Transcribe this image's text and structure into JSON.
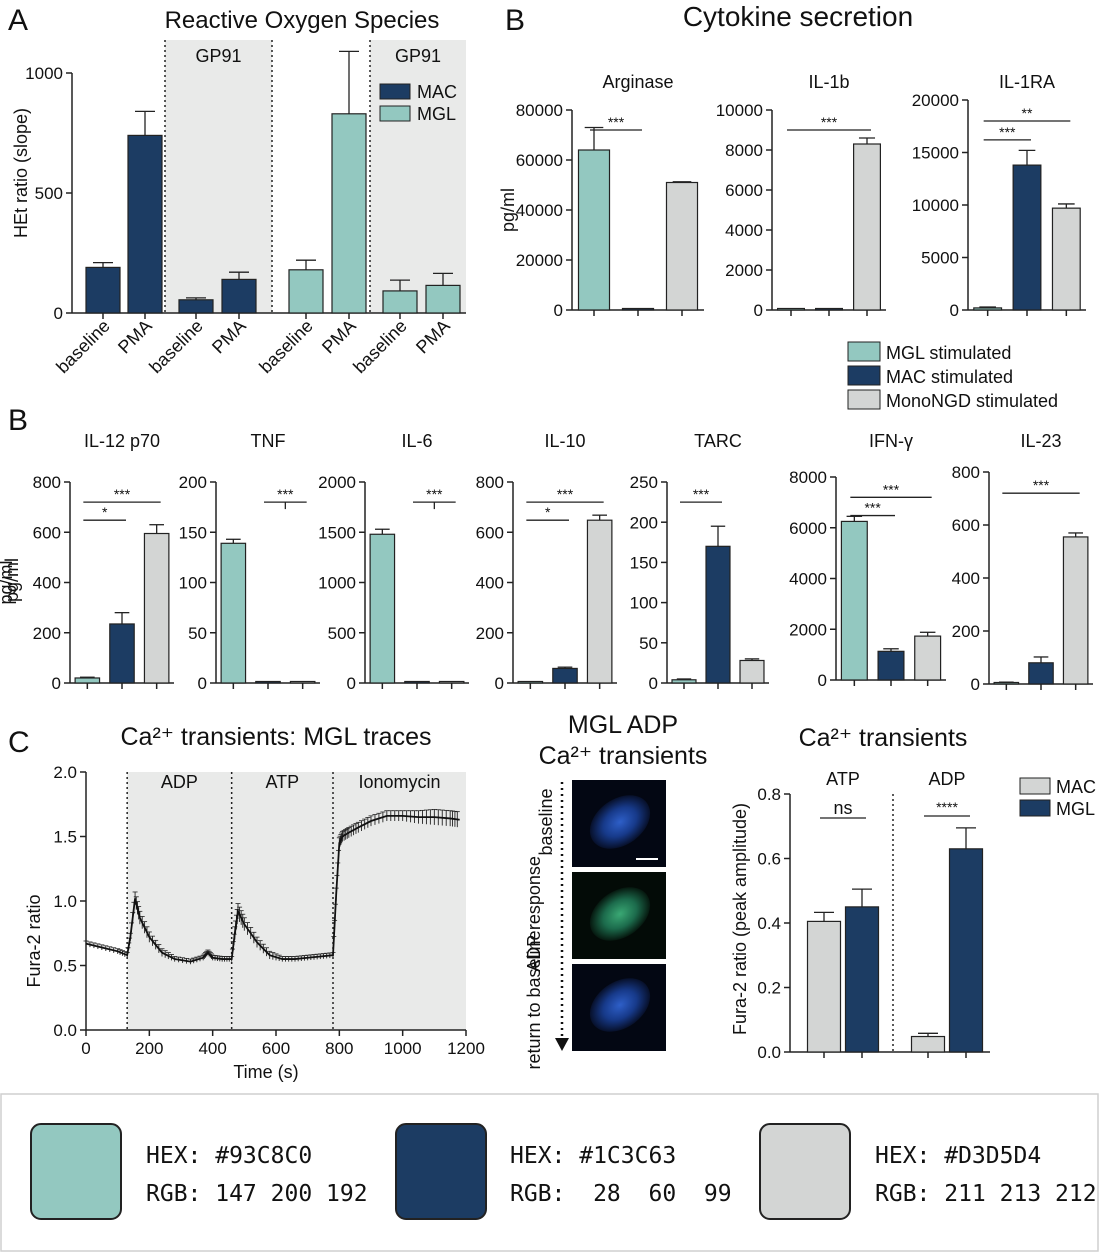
{
  "colors": {
    "mgl": "#93C8C0",
    "mac": "#1C3C63",
    "mono": "#D3D5D4",
    "shade": "#E9EAE9"
  },
  "panels": {
    "A": {
      "letter": "A",
      "title": "Reactive Oxygen Species"
    },
    "B1": {
      "letter": "B",
      "title": "Cytokine secretion"
    },
    "B2": {
      "letter": "B"
    },
    "C": {
      "letter": "C",
      "trace_title": "Ca²⁺ transients: MGL traces",
      "img_title_l1": "MGL ADP",
      "img_title_l2": "Ca²⁺ transients",
      "bar_title": "Ca²⁺ transients"
    }
  },
  "chart_data": [
    {
      "id": "ros",
      "type": "bar",
      "title": "Reactive Oxygen Species",
      "ylabel": "HEt ratio (slope)",
      "ylim": [
        0,
        1000
      ],
      "yticks": [
        0,
        500,
        1000
      ],
      "categories": [
        "baseline",
        "PMA",
        "baseline",
        "PMA",
        "baseline",
        "PMA",
        "baseline",
        "PMA"
      ],
      "groups": [
        "MAC",
        "MAC",
        "MAC",
        "MAC",
        "MGL",
        "MGL",
        "MGL",
        "MGL"
      ],
      "values": [
        190,
        740,
        55,
        140,
        180,
        830,
        92,
        115
      ],
      "errors": [
        20,
        100,
        8,
        30,
        40,
        260,
        45,
        50
      ],
      "shaded_labels": [
        "GP91",
        "GP91"
      ],
      "legend": [
        {
          "name": "MAC",
          "color": "#1C3C63"
        },
        {
          "name": "MGL",
          "color": "#93C8C0"
        }
      ]
    },
    {
      "id": "arginase",
      "type": "bar",
      "title": "Arginase",
      "ylabel": "pg/ml",
      "ylim": [
        0,
        80000
      ],
      "yticks": [
        0,
        20000,
        40000,
        60000,
        80000
      ],
      "series": [
        "MGL stimulated",
        "MAC stimulated",
        "MonoNGD stimulated"
      ],
      "values": [
        64000,
        400,
        51000
      ],
      "errors": [
        9000,
        100,
        300
      ],
      "significance": [
        {
          "from": 0,
          "to": 1,
          "label": "***"
        }
      ]
    },
    {
      "id": "il1b",
      "type": "bar",
      "title": "IL-1b",
      "ylabel": "",
      "ylim": [
        0,
        10000
      ],
      "yticks": [
        0,
        2000,
        4000,
        6000,
        8000,
        10000
      ],
      "series": [
        "MGL stimulated",
        "MAC stimulated",
        "MonoNGD stimulated"
      ],
      "values": [
        20,
        60,
        8300
      ],
      "errors": [
        5,
        10,
        300
      ],
      "significance": [
        {
          "from": 0,
          "to": 2,
          "label": "***"
        }
      ]
    },
    {
      "id": "il1ra",
      "type": "bar",
      "title": "IL-1RA",
      "ylabel": "",
      "ylim": [
        0,
        20000
      ],
      "yticks": [
        0,
        5000,
        10000,
        15000,
        20000
      ],
      "series": [
        "MGL stimulated",
        "MAC stimulated",
        "MonoNGD stimulated"
      ],
      "values": [
        200,
        13800,
        9700
      ],
      "errors": [
        80,
        1400,
        400
      ],
      "significance": [
        {
          "from": 0,
          "to": 1,
          "label": "***"
        },
        {
          "from": 0,
          "to": 2,
          "label": "**"
        }
      ]
    },
    {
      "id": "il12",
      "type": "bar",
      "title": "IL-12 p70",
      "ylabel": "pg/ml",
      "ylim": [
        0,
        800
      ],
      "yticks": [
        0,
        200,
        400,
        600,
        800
      ],
      "values": [
        20,
        235,
        595
      ],
      "errors": [
        3,
        45,
        35
      ],
      "significance": [
        {
          "from": 0,
          "to": 1,
          "label": "*"
        },
        {
          "from": 0,
          "to": 2,
          "label": "***"
        }
      ]
    },
    {
      "id": "tnf",
      "type": "bar",
      "title": "TNF",
      "ylabel": "",
      "ylim": [
        0,
        200
      ],
      "yticks": [
        0,
        50,
        100,
        150,
        200
      ],
      "values": [
        139,
        0.5,
        0.5
      ],
      "errors": [
        4,
        0,
        0
      ],
      "significance": [
        {
          "from": 1,
          "to": 2,
          "label": "***",
          "tick_mid": true
        }
      ]
    },
    {
      "id": "il6",
      "type": "bar",
      "title": "IL-6",
      "ylabel": "",
      "ylim": [
        0,
        2000
      ],
      "yticks": [
        0,
        500,
        1000,
        1500,
        2000
      ],
      "values": [
        1480,
        2,
        2
      ],
      "errors": [
        50,
        0,
        0
      ],
      "significance": [
        {
          "from": 1,
          "to": 2,
          "label": "***",
          "tick_mid": true
        }
      ]
    },
    {
      "id": "il10",
      "type": "bar",
      "title": "IL-10",
      "ylabel": "",
      "ylim": [
        0,
        800
      ],
      "yticks": [
        0,
        200,
        400,
        600,
        800
      ],
      "values": [
        0,
        58,
        648
      ],
      "errors": [
        0,
        5,
        20
      ],
      "significance": [
        {
          "from": 0,
          "to": 1,
          "label": "*"
        },
        {
          "from": 0,
          "to": 2,
          "label": "***"
        }
      ]
    },
    {
      "id": "tarc",
      "type": "bar",
      "title": "TARC",
      "ylabel": "",
      "ylim": [
        0,
        250
      ],
      "yticks": [
        0,
        50,
        100,
        150,
        200,
        250
      ],
      "values": [
        4,
        170,
        28
      ],
      "errors": [
        1,
        25,
        2
      ],
      "significance": [
        {
          "from": 0,
          "to": 1,
          "label": "***"
        }
      ]
    },
    {
      "id": "ifng",
      "type": "bar",
      "title": "IFN-γ",
      "ylabel": "",
      "ylim": [
        0,
        8000
      ],
      "yticks": [
        0,
        2000,
        4000,
        6000,
        8000
      ],
      "values": [
        6250,
        1130,
        1730
      ],
      "errors": [
        200,
        100,
        150
      ],
      "significance": [
        {
          "from": 0,
          "to": 1,
          "label": "***"
        },
        {
          "from": 0,
          "to": 2,
          "label": "***"
        }
      ]
    },
    {
      "id": "il23",
      "type": "bar",
      "title": "IL-23",
      "ylabel": "",
      "ylim": [
        0,
        800
      ],
      "yticks": [
        0,
        200,
        400,
        600,
        800
      ],
      "values": [
        5,
        80,
        555
      ],
      "errors": [
        2,
        22,
        15
      ],
      "significance": [
        {
          "from": 0,
          "to": 2,
          "label": "***"
        }
      ]
    },
    {
      "id": "fura_trace",
      "type": "line",
      "title": "Ca²⁺ transients: MGL traces",
      "xlabel": "Time (s)",
      "ylabel": "Fura-2 ratio",
      "xlim": [
        0,
        1200
      ],
      "ylim": [
        0,
        2.0
      ],
      "xticks": [
        0,
        200,
        400,
        600,
        800,
        1000,
        1200
      ],
      "yticks": [
        0.0,
        0.5,
        1.0,
        1.5,
        2.0
      ],
      "yticklabels": [
        "0.0",
        "0.5",
        "1.0",
        "1.5",
        "2.0"
      ],
      "phases": [
        {
          "label": "ADP",
          "start": 130,
          "end": 460
        },
        {
          "label": "ATP",
          "start": 460,
          "end": 780
        },
        {
          "label": "Ionomycin",
          "start": 780,
          "end": 1200
        }
      ],
      "x": [
        0,
        50,
        100,
        130,
        140,
        155,
        170,
        200,
        240,
        280,
        330,
        370,
        385,
        400,
        430,
        460,
        470,
        480,
        500,
        540,
        580,
        620,
        660,
        700,
        740,
        780,
        790,
        800,
        810,
        830,
        860,
        900,
        950,
        1000,
        1050,
        1100,
        1150,
        1180
      ],
      "y": [
        0.67,
        0.64,
        0.61,
        0.58,
        0.72,
        1.02,
        0.87,
        0.72,
        0.6,
        0.55,
        0.53,
        0.56,
        0.6,
        0.56,
        0.55,
        0.55,
        0.75,
        0.92,
        0.82,
        0.68,
        0.58,
        0.55,
        0.55,
        0.56,
        0.57,
        0.58,
        1.05,
        1.45,
        1.5,
        1.53,
        1.57,
        1.62,
        1.66,
        1.66,
        1.65,
        1.65,
        1.64,
        1.63
      ],
      "err": [
        0.02,
        0.02,
        0.02,
        0.02,
        0.03,
        0.05,
        0.05,
        0.04,
        0.03,
        0.02,
        0.02,
        0.02,
        0.02,
        0.02,
        0.02,
        0.02,
        0.05,
        0.06,
        0.05,
        0.04,
        0.03,
        0.02,
        0.02,
        0.02,
        0.02,
        0.02,
        0.05,
        0.04,
        0.04,
        0.04,
        0.04,
        0.04,
        0.04,
        0.04,
        0.05,
        0.06,
        0.06,
        0.06
      ]
    },
    {
      "id": "fura_peak",
      "type": "bar",
      "title": "Ca²⁺ transients",
      "ylabel": "Fura-2 ratio (peak amplitude)",
      "ylim": [
        0,
        0.8
      ],
      "yticks": [
        0,
        0.2,
        0.4,
        0.6,
        0.8
      ],
      "yticklabels": [
        "0.0",
        "0.2",
        "0.4",
        "0.6",
        "0.8"
      ],
      "groups": [
        "ATP",
        "ADP"
      ],
      "series": [
        {
          "name": "MAC",
          "values": [
            0.405,
            0.048
          ],
          "errors": [
            0.028,
            0.01
          ]
        },
        {
          "name": "MGL",
          "values": [
            0.45,
            0.63
          ],
          "errors": [
            0.055,
            0.065
          ]
        }
      ],
      "significance": [
        {
          "group": "ATP",
          "label": "ns"
        },
        {
          "group": "ADP",
          "label": "****"
        }
      ],
      "legend": [
        {
          "name": "MAC",
          "color": "#D3D5D4"
        },
        {
          "name": "MGL",
          "color": "#1C3C63"
        }
      ]
    }
  ],
  "cytokine_legend": [
    {
      "label": "MGL stimulated",
      "color": "#93C8C0"
    },
    {
      "label": "MAC stimulated",
      "color": "#1C3C63"
    },
    {
      "label": "MonoNGD stimulated",
      "color": "#D3D5D4"
    }
  ],
  "micrographs": {
    "labels": [
      "baseline",
      "ADP response",
      "return to baseline"
    ],
    "frames": [
      "blue",
      "green",
      "blue"
    ]
  },
  "swatches": [
    {
      "hex_text": "HEX: #93C8C0",
      "rgb_text": "RGB: 147 200 192",
      "color": "#93C8C0"
    },
    {
      "hex_text": "HEX: #1C3C63",
      "rgb_text": "RGB:  28  60  99",
      "color": "#1C3C63"
    },
    {
      "hex_text": "HEX: #D3D5D4",
      "rgb_text": "RGB: 211 213 212",
      "color": "#D3D5D4"
    }
  ]
}
